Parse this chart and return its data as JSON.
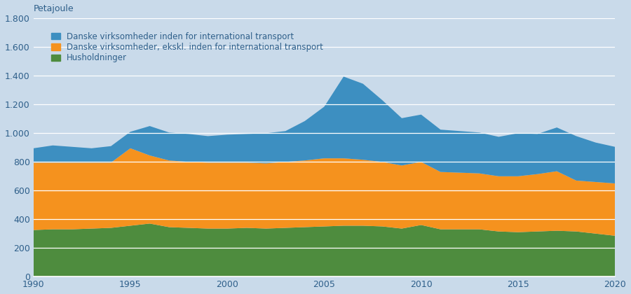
{
  "years": [
    1990,
    1991,
    1992,
    1993,
    1994,
    1995,
    1996,
    1997,
    1998,
    1999,
    2000,
    2001,
    2002,
    2003,
    2004,
    2005,
    2006,
    2007,
    2008,
    2009,
    2010,
    2011,
    2012,
    2013,
    2014,
    2015,
    2016,
    2017,
    2018,
    2019,
    2020
  ],
  "husholdninger": [
    325,
    330,
    330,
    335,
    340,
    355,
    370,
    345,
    340,
    335,
    335,
    340,
    335,
    340,
    345,
    350,
    355,
    355,
    350,
    335,
    360,
    330,
    330,
    330,
    315,
    310,
    315,
    320,
    315,
    300,
    285
  ],
  "virksomheder_ekskl": [
    470,
    465,
    465,
    460,
    455,
    540,
    475,
    465,
    460,
    460,
    460,
    455,
    455,
    460,
    465,
    475,
    470,
    460,
    450,
    440,
    440,
    400,
    395,
    390,
    385,
    390,
    400,
    415,
    355,
    360,
    365
  ],
  "virksomheder_inden": [
    100,
    120,
    110,
    100,
    115,
    115,
    205,
    195,
    195,
    185,
    195,
    200,
    210,
    215,
    275,
    360,
    570,
    530,
    430,
    330,
    330,
    295,
    290,
    285,
    275,
    300,
    280,
    305,
    310,
    275,
    255
  ],
  "colors": {
    "husholdninger": "#4e8c3e",
    "virksomheder_ekskl": "#f5921e",
    "virksomheder_inden": "#3d8fc1"
  },
  "legend_labels": [
    "Danske virksomheder inden for international transport",
    "Danske virksomheder, ekskl. inden for international transport",
    "Husholdninger"
  ],
  "ylabel_text": "Petajoule",
  "ylim": [
    0,
    1800
  ],
  "yticks": [
    0,
    200,
    400,
    600,
    800,
    1000,
    1200,
    1400,
    1600,
    1800
  ],
  "ytick_labels": [
    "0",
    "200",
    "400",
    "600",
    "800",
    "1.000",
    "1.200",
    "1.400",
    "1.600",
    "1.800"
  ],
  "xticks": [
    1990,
    1995,
    2000,
    2005,
    2010,
    2015,
    2020
  ],
  "background_color": "#c9daea",
  "gridline_color": "#ffffff",
  "text_color": "#2e5f8a"
}
